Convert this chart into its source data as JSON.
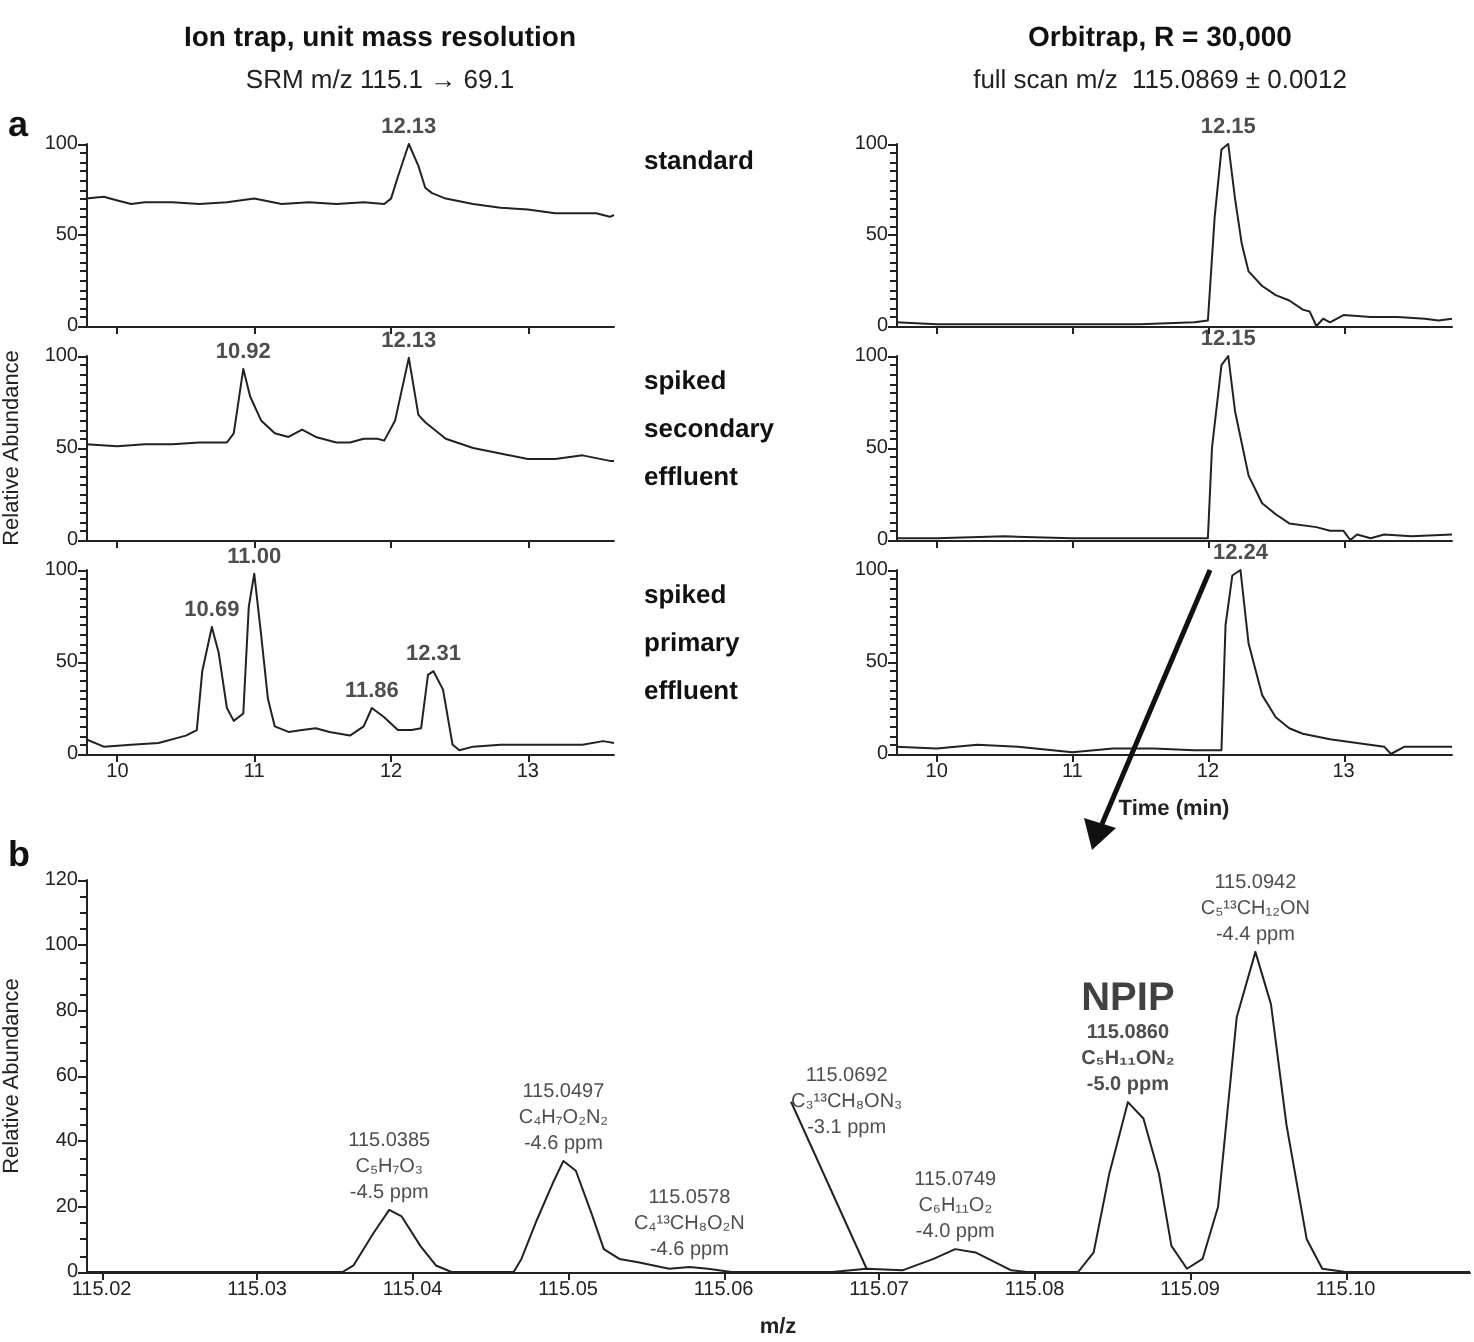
{
  "chart_data": [
    {
      "type": "line",
      "title": "Ion trap, unit mass resolution",
      "subtitle": "SRM m/z 115.1 → 69.1",
      "annotations": [
        "a",
        "standard",
        {
          "text": "12.13",
          "x": 12.13,
          "y": 100
        }
      ],
      "x": [
        9.77,
        9.9,
        10.0,
        10.1,
        10.2,
        10.4,
        10.6,
        10.8,
        11.0,
        11.2,
        11.4,
        11.6,
        11.8,
        11.95,
        12.0,
        12.05,
        12.13,
        12.2,
        12.25,
        12.3,
        12.4,
        12.6,
        12.8,
        13.0,
        13.2,
        13.4,
        13.5,
        13.6,
        13.63
      ],
      "values": [
        70,
        71,
        69,
        67,
        68,
        68,
        67,
        68,
        70,
        67,
        68,
        67,
        68,
        67,
        70,
        82,
        100,
        88,
        76,
        73,
        70,
        67,
        65,
        64,
        62,
        62,
        62,
        60,
        61
      ],
      "color": "#222222",
      "xlim": [
        9.77,
        13.63
      ],
      "xticks": [
        10,
        11,
        12,
        13
      ],
      "ylim": [
        0,
        100
      ],
      "yticks": [
        0,
        50,
        100
      ],
      "tick_labels": "y"
    },
    {
      "type": "line",
      "ylabel": "Relative Abundance",
      "annotations": [
        "spiked secondary effluent",
        {
          "text": "10.92",
          "x": 10.92,
          "y": 93
        },
        {
          "text": "12.13",
          "x": 12.13,
          "y": 99
        }
      ],
      "x": [
        9.77,
        10.0,
        10.2,
        10.4,
        10.6,
        10.8,
        10.85,
        10.92,
        10.97,
        11.05,
        11.15,
        11.25,
        11.35,
        11.45,
        11.6,
        11.7,
        11.8,
        11.9,
        11.95,
        12.03,
        12.13,
        12.2,
        12.25,
        12.4,
        12.6,
        12.8,
        13.0,
        13.2,
        13.4,
        13.6,
        13.63
      ],
      "values": [
        52,
        51,
        52,
        52,
        53,
        53,
        58,
        93,
        78,
        65,
        58,
        56,
        60,
        56,
        53,
        53,
        55,
        55,
        54,
        65,
        99,
        68,
        64,
        55,
        50,
        47,
        44,
        44,
        46,
        43,
        43
      ],
      "color": "#222222",
      "xlim": [
        9.77,
        13.63
      ],
      "xticks": [
        10,
        11,
        12,
        13
      ],
      "ylim": [
        0,
        100
      ],
      "yticks": [
        0,
        50,
        100
      ],
      "tick_labels": "y"
    },
    {
      "type": "line",
      "annotations": [
        "spiked primary effluent",
        {
          "text": "10.69",
          "x": 10.69,
          "y": 69
        },
        {
          "text": "11.00",
          "x": 11.0,
          "y": 98
        },
        {
          "text": "11.86",
          "x": 11.86,
          "y": 25
        },
        {
          "text": "12.31",
          "x": 12.31,
          "y": 45
        }
      ],
      "x": [
        9.77,
        9.9,
        10.1,
        10.3,
        10.5,
        10.58,
        10.62,
        10.69,
        10.74,
        10.8,
        10.85,
        10.92,
        10.96,
        11.0,
        11.05,
        11.1,
        11.15,
        11.25,
        11.35,
        11.45,
        11.55,
        11.7,
        11.8,
        11.86,
        11.95,
        12.05,
        12.15,
        12.22,
        12.27,
        12.31,
        12.38,
        12.45,
        12.5,
        12.6,
        12.8,
        13.0,
        13.2,
        13.4,
        13.55,
        13.63
      ],
      "values": [
        8,
        4,
        5,
        6,
        10,
        13,
        45,
        69,
        55,
        25,
        18,
        22,
        80,
        98,
        65,
        30,
        15,
        12,
        13,
        14,
        12,
        10,
        15,
        25,
        20,
        13,
        13,
        14,
        43,
        45,
        35,
        5,
        2,
        4,
        5,
        5,
        5,
        5,
        7,
        6
      ],
      "color": "#222222",
      "xlim": [
        9.77,
        13.63
      ],
      "xticks": [
        10,
        11,
        12,
        13
      ],
      "ylim": [
        0,
        100
      ],
      "yticks": [
        0,
        50,
        100
      ]
    },
    {
      "type": "line",
      "title": "Orbitrap, R = 30,000",
      "subtitle": "full scan m/z  115.0869 ± 0.0012",
      "annotations": [
        {
          "text": "12.15",
          "x": 12.15,
          "y": 100
        }
      ],
      "x": [
        9.7,
        10.0,
        10.5,
        11.0,
        11.5,
        11.9,
        12.0,
        12.05,
        12.1,
        12.15,
        12.2,
        12.25,
        12.3,
        12.4,
        12.5,
        12.6,
        12.7,
        12.75,
        12.8,
        12.85,
        12.9,
        13.0,
        13.2,
        13.4,
        13.6,
        13.7,
        13.8
      ],
      "values": [
        2,
        1,
        1,
        1,
        1,
        2,
        3,
        60,
        97,
        100,
        70,
        45,
        30,
        22,
        17,
        14,
        9,
        8,
        0,
        4,
        2,
        6,
        5,
        5,
        4,
        3,
        4
      ],
      "color": "#222222",
      "xlim": [
        9.7,
        13.8
      ],
      "xticks": [
        10,
        11,
        12,
        13
      ],
      "ylim": [
        0,
        100
      ],
      "yticks": [
        0,
        50,
        100
      ],
      "tick_labels": "y"
    },
    {
      "type": "line",
      "annotations": [
        {
          "text": "12.15",
          "x": 12.15,
          "y": 100
        }
      ],
      "x": [
        9.7,
        10.0,
        10.5,
        11.0,
        11.5,
        12.0,
        12.03,
        12.1,
        12.15,
        12.2,
        12.3,
        12.4,
        12.5,
        12.6,
        12.8,
        12.9,
        13.0,
        13.05,
        13.1,
        13.2,
        13.3,
        13.5,
        13.8
      ],
      "values": [
        1,
        1,
        2,
        1,
        1,
        1,
        50,
        95,
        100,
        70,
        35,
        20,
        14,
        9,
        7,
        5,
        5,
        0,
        3,
        1,
        3,
        2,
        3
      ],
      "color": "#222222",
      "xlim": [
        9.7,
        13.8
      ],
      "xticks": [
        10,
        11,
        12,
        13
      ],
      "ylim": [
        0,
        100
      ],
      "yticks": [
        0,
        50,
        100
      ],
      "tick_labels": "y"
    },
    {
      "type": "line",
      "xlabel": "Time (min)",
      "annotations": [
        {
          "text": "12.24",
          "x": 12.24,
          "y": 100
        }
      ],
      "x": [
        9.7,
        10.0,
        10.3,
        10.6,
        11.0,
        11.3,
        11.6,
        11.9,
        12.1,
        12.13,
        12.18,
        12.24,
        12.3,
        12.4,
        12.5,
        12.6,
        12.7,
        12.9,
        13.1,
        13.3,
        13.35,
        13.45,
        13.8
      ],
      "values": [
        4,
        3,
        5,
        4,
        1,
        3,
        3,
        2,
        2,
        70,
        97,
        100,
        60,
        32,
        20,
        14,
        11,
        8,
        6,
        4,
        0,
        4,
        4
      ],
      "color": "#222222",
      "xlim": [
        9.7,
        13.8
      ],
      "xticks": [
        10,
        11,
        12,
        13
      ],
      "ylim": [
        0,
        100
      ],
      "yticks": [
        0,
        50,
        100
      ]
    },
    {
      "type": "line",
      "xlabel": "m/z",
      "ylabel": "Relative Abundance",
      "annotations": [
        "b",
        {
          "text": "115.0385\nC₅H₇O₃\n-4.5 ppm",
          "x": 115.0385,
          "y": 19
        },
        {
          "text": "115.0497\nC₄H₇O₂N₂\n-4.6 ppm",
          "x": 115.0497,
          "y": 34
        },
        {
          "text": "115.0578\nC₄¹³CH₈O₂N\n-4.6 ppm",
          "x": 115.0578,
          "y": 1.5
        },
        {
          "text": "115.0692\nC₃¹³CH₈ON₃\n-3.1 ppm",
          "x": 115.0692,
          "y": 1
        },
        {
          "text": "115.0749\nC₆H₁₁O₂\n-4.0 ppm",
          "x": 115.0749,
          "y": 7
        },
        {
          "text": "NPIP\n115.0860\nC₅H₁₁ON₂\n-5.0 ppm",
          "x": 115.086,
          "y": 52
        },
        {
          "text": "115.0942\nC₅¹³CH₁₂ON\n-4.4 ppm",
          "x": 115.0942,
          "y": 98
        }
      ],
      "x": [
        115.019,
        115.033,
        115.0355,
        115.0362,
        115.0375,
        115.0385,
        115.0393,
        115.0405,
        115.0415,
        115.0425,
        115.0465,
        115.047,
        115.048,
        115.049,
        115.0497,
        115.0505,
        115.0515,
        115.0523,
        115.0533,
        115.0545,
        115.0565,
        115.0578,
        115.059,
        115.0605,
        115.067,
        115.0692,
        115.0715,
        115.0735,
        115.0749,
        115.0762,
        115.0785,
        115.0795,
        115.0828,
        115.0838,
        115.0848,
        115.086,
        115.087,
        115.088,
        115.0888,
        115.0898,
        115.0908,
        115.0918,
        115.093,
        115.0942,
        115.0952,
        115.0962,
        115.0975,
        115.0985,
        115.1,
        115.108
      ],
      "values": [
        0,
        0,
        0,
        2,
        12,
        19,
        17,
        8,
        2,
        0,
        0,
        4,
        16,
        27,
        34,
        31,
        18,
        7,
        4,
        3,
        1,
        1.5,
        1,
        0,
        0,
        1,
        0.5,
        4,
        7,
        6,
        0.5,
        0,
        0,
        6,
        30,
        52,
        47,
        30,
        8,
        1,
        4,
        20,
        78,
        98,
        82,
        45,
        10,
        1,
        0,
        0
      ],
      "color": "#222222",
      "xlim": [
        115.019,
        115.108
      ],
      "xticks": [
        115.02,
        115.03,
        115.04,
        115.05,
        115.06,
        115.07,
        115.08,
        115.09,
        {
          "value": 115.1,
          "label": "115.10"
        }
      ],
      "ylim": [
        0,
        120
      ],
      "yticks": [
        0,
        20,
        40,
        60,
        80,
        100,
        120
      ]
    }
  ]
}
